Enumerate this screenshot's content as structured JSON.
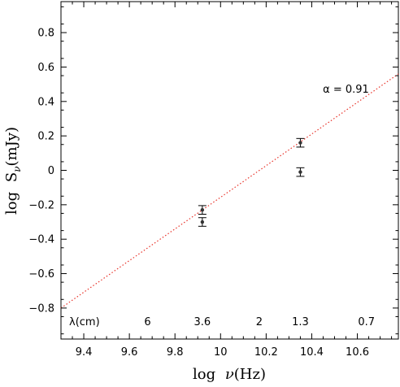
{
  "chart_data": {
    "type": "scatter",
    "xlabel_prefix": "log",
    "xlabel_symbol": "ν",
    "xlabel_unit": "(Hz)",
    "ylabel_prefix": "log",
    "ylabel_symbol": "S",
    "ylabel_subscript": "ν",
    "ylabel_unit": "(mJy)",
    "xlim": [
      9.3,
      10.78
    ],
    "ylim": [
      -0.98,
      0.98
    ],
    "xticks": [
      9.4,
      9.6,
      9.8,
      10,
      10.2,
      10.4,
      10.6
    ],
    "xtick_labels": [
      "9.4",
      "9.6",
      "9.8",
      "10",
      "10.2",
      "10.4",
      "10.6"
    ],
    "yticks": [
      -0.8,
      -0.6,
      -0.4,
      -0.2,
      0,
      0.2,
      0.4,
      0.6,
      0.8
    ],
    "ytick_labels": [
      "−0.8",
      "−0.6",
      "−0.4",
      "−0.2",
      "0",
      "0.2",
      "0.4",
      "0.6",
      "0.8"
    ],
    "points": [
      {
        "x": 9.92,
        "y": -0.23,
        "yerr": 0.025
      },
      {
        "x": 9.92,
        "y": -0.3,
        "yerr": 0.025
      },
      {
        "x": 10.35,
        "y": 0.16,
        "yerr": 0.025
      },
      {
        "x": 10.35,
        "y": -0.01,
        "yerr": 0.025
      }
    ],
    "fit_line": {
      "x": [
        9.3,
        10.78
      ],
      "y": [
        -0.8,
        0.56
      ],
      "style": "dotted",
      "color": "#e8332a"
    },
    "annotation": {
      "text": "α = 0.91",
      "x": 10.55,
      "y": 0.45
    },
    "wavelength_label": "λ(cm)",
    "wavelength_marks": [
      {
        "text": "6",
        "x": 9.68
      },
      {
        "text": "3.6",
        "x": 9.92
      },
      {
        "text": "2",
        "x": 10.17
      },
      {
        "text": "1.3",
        "x": 10.35
      },
      {
        "text": "0.7",
        "x": 10.64
      }
    ],
    "wavelength_row_y": -0.9,
    "grid": false,
    "marker_color": "#333333"
  }
}
